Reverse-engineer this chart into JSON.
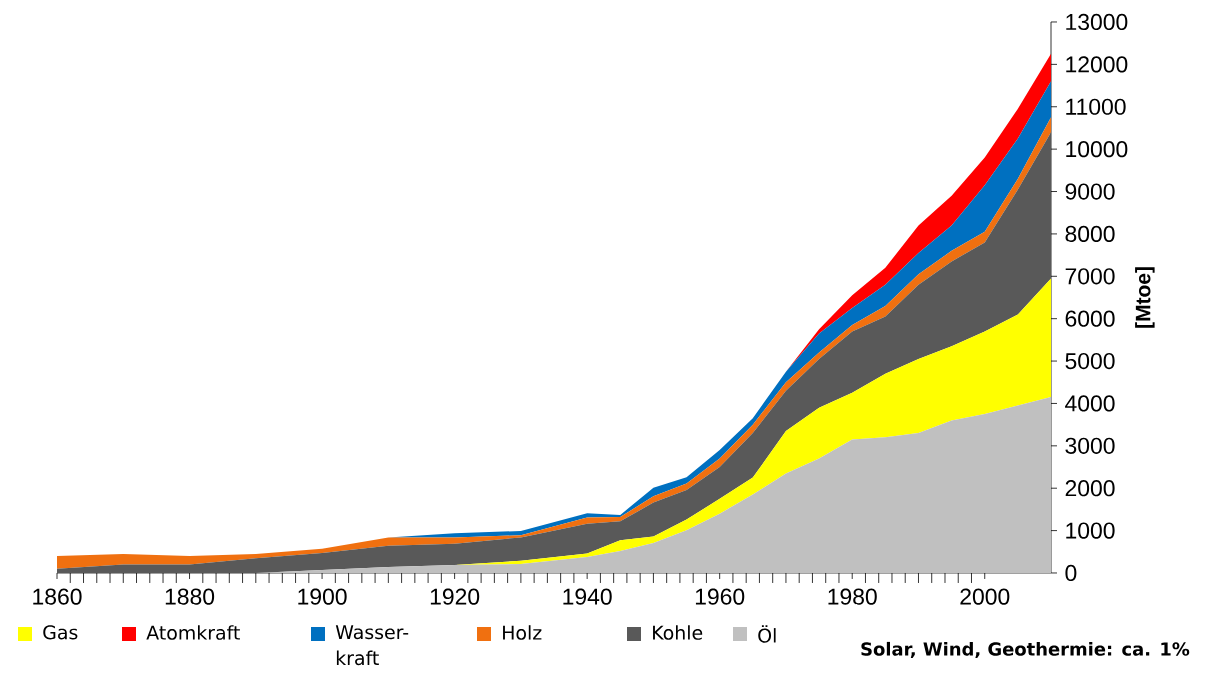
{
  "chart_data": {
    "type": "area",
    "stacked": true,
    "ylabel": "[Mtoe]",
    "x": [
      1860,
      1870,
      1880,
      1890,
      1900,
      1910,
      1920,
      1930,
      1940,
      1945,
      1950,
      1955,
      1960,
      1965,
      1970,
      1975,
      1980,
      1985,
      1990,
      1995,
      2000,
      2005,
      2010
    ],
    "series": [
      {
        "name": "Öl",
        "color": "#c0c0c0",
        "values": [
          0,
          0,
          0,
          0,
          70,
          140,
          190,
          210,
          380,
          520,
          710,
          1010,
          1400,
          1850,
          2350,
          2700,
          3150,
          3200,
          3300,
          3600,
          3750,
          3950,
          4150
        ]
      },
      {
        "name": "Gas",
        "color": "#ffff00",
        "values": [
          0,
          0,
          0,
          0,
          0,
          0,
          0,
          80,
          80,
          250,
          150,
          250,
          350,
          400,
          1000,
          1200,
          1100,
          1500,
          1750,
          1750,
          1950,
          2150,
          2800
        ]
      },
      {
        "name": "Kohle",
        "color": "#595959",
        "values": [
          100,
          200,
          200,
          350,
          400,
          500,
          500,
          550,
          700,
          450,
          800,
          700,
          750,
          1050,
          950,
          1150,
          1450,
          1350,
          1750,
          2000,
          2100,
          2950,
          3450
        ]
      },
      {
        "name": "Holz",
        "color": "#f07010",
        "values": [
          300,
          250,
          200,
          100,
          100,
          200,
          150,
          50,
          150,
          100,
          150,
          150,
          200,
          200,
          200,
          150,
          150,
          250,
          250,
          250,
          250,
          250,
          350
        ]
      },
      {
        "name": "Wasser-kraft",
        "color": "#0070c0",
        "values": [
          0,
          0,
          0,
          0,
          0,
          0,
          100,
          100,
          100,
          50,
          200,
          150,
          200,
          150,
          250,
          450,
          400,
          500,
          500,
          600,
          1100,
          950,
          850
        ]
      },
      {
        "name": "Atomkraft",
        "color": "#ff0000",
        "values": [
          0,
          0,
          0,
          0,
          0,
          0,
          0,
          0,
          0,
          0,
          0,
          0,
          0,
          0,
          0,
          100,
          300,
          400,
          650,
          700,
          650,
          700,
          650
        ]
      }
    ],
    "xlim": [
      1860,
      2010
    ],
    "xticks": [
      1860,
      1880,
      1900,
      1920,
      1940,
      1960,
      1980,
      2000
    ],
    "ylim": [
      0,
      13000
    ],
    "yticks": [
      0,
      1000,
      2000,
      3000,
      4000,
      5000,
      6000,
      7000,
      8000,
      9000,
      10000,
      11000,
      12000,
      13000
    ],
    "legend": "bottom",
    "grid": false,
    "annotations": [
      "Solar, Wind, Geothermie: ca. 1%"
    ]
  }
}
